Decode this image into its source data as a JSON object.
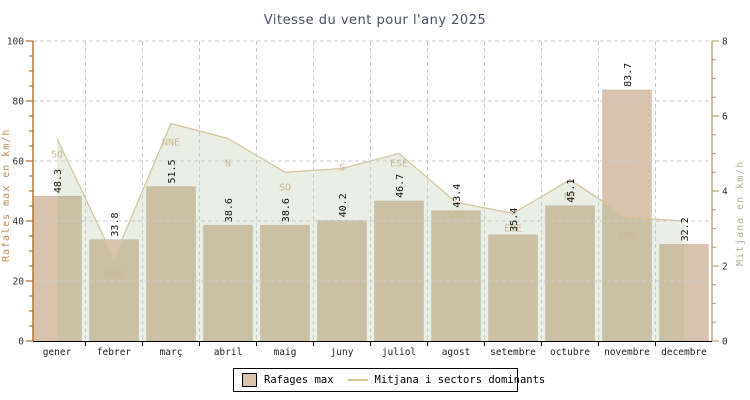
{
  "title": "Vitesse du vent pour l'any 2025",
  "chart_data": {
    "type": "bar",
    "subtype": "bar + area combo, dual axis",
    "categories": [
      "gener",
      "febrer",
      "març",
      "abril",
      "maig",
      "juny",
      "juliol",
      "agost",
      "setembre",
      "octubre",
      "novembre",
      "decembre"
    ],
    "series": [
      {
        "name": "Rafages max",
        "type": "bar",
        "axis": "left",
        "values": [
          48.3,
          33.8,
          51.5,
          38.6,
          38.6,
          40.2,
          46.7,
          43.4,
          35.4,
          45.1,
          83.7,
          32.2
        ]
      },
      {
        "name": "Mitjana i sectors dominants",
        "type": "area",
        "axis": "right",
        "values": [
          5.4,
          2.2,
          5.8,
          5.4,
          4.5,
          4.6,
          5.0,
          3.7,
          3.4,
          4.3,
          3.3,
          3.2
        ],
        "sectors": [
          "SO",
          "NNO",
          "NNE",
          "N",
          "SO",
          "S",
          "ESE",
          "SSE",
          "ESE",
          "NE",
          "OSO",
          ""
        ],
        "sector_label_y": [
          154,
          274,
          142,
          163,
          187,
          167,
          163,
          214,
          228,
          196,
          235,
          0
        ]
      }
    ],
    "axes": {
      "left": {
        "label": "Rafales max en km/h",
        "min": 0,
        "max": 100,
        "tick_step": 20,
        "minor_step": 5
      },
      "right": {
        "label": "Mitjana en km/h",
        "min": 0,
        "max": 8,
        "tick_step": 2,
        "minor_step": 0.5
      }
    },
    "legend": {
      "items": [
        {
          "label": "Rafages max",
          "swatch": "box"
        },
        {
          "label": "Mitjana i sectors dominants",
          "swatch": "line"
        }
      ]
    },
    "grid": "dashed, on",
    "colors": {
      "bar": "#d9c3ae",
      "area_fill": "#96af7d",
      "area_fill_opacity": 0.2,
      "area_line": "#d8c49e",
      "grid": "#cccccc",
      "left_axis": "#b0712f",
      "left_axis_title": "#c08a4a",
      "right_axis": "#bda37e",
      "right_axis_title": "#a3b993",
      "title": "#454f63",
      "value_label": "#111111",
      "sector_label": "#c9b897",
      "month_label": "#222222",
      "tick_label": "#333333",
      "bottom_axis": "#000000"
    }
  }
}
